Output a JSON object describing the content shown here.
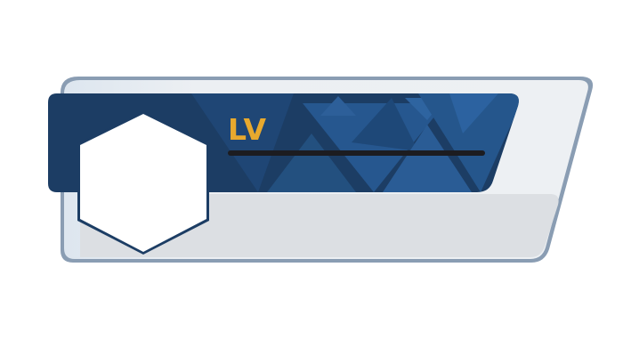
{
  "level_card": {
    "level_label": "LV",
    "xp_progress": 0,
    "colors": {
      "accent": "#e8a92e",
      "banner": "#1c3d64",
      "banner_pattern": "#26578f",
      "frame": "#8a9db3",
      "card_fill": "#eaedf1",
      "lower_panel": "#dcdfe3",
      "xp_track": "#1c1c20",
      "avatar_fill": "#ffffff"
    },
    "avatar": {
      "shape": "hexagon",
      "icon": "avatar-icon"
    }
  }
}
